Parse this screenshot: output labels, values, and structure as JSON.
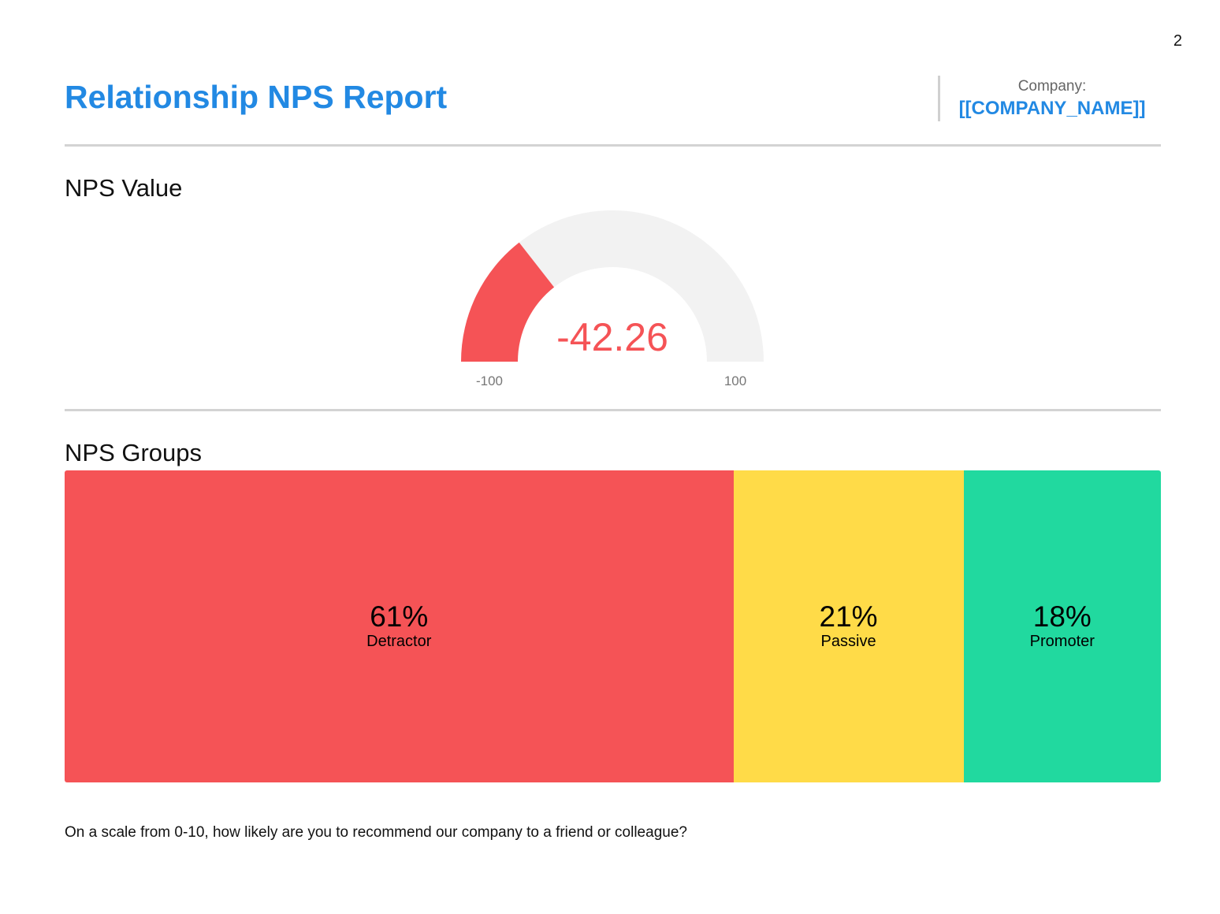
{
  "page": {
    "number": "2"
  },
  "header": {
    "title": "Relationship NPS Report",
    "company_label": "Company:",
    "company_name": "[[COMPANY_NAME]]"
  },
  "sections": {
    "nps_value_title": "NPS Value",
    "nps_groups_title": "NPS Groups"
  },
  "footer": {
    "question": "On a scale from 0-10, how likely are you to recommend our company to a friend or colleague?"
  },
  "colors": {
    "accent": "#2289e3",
    "detractor": "#f55356",
    "passive": "#ffdb48",
    "promoter": "#21d99f",
    "gauge_track": "#f2f2f2",
    "gauge_value": "#f55356",
    "axis_label": "#777777",
    "divider": "#d3d3d3"
  },
  "chart_data": [
    {
      "type": "gauge",
      "value": -42.26,
      "value_label": "-42.26",
      "min": -100,
      "max": 100,
      "min_label": "-100",
      "max_label": "100"
    },
    {
      "type": "bar",
      "stacked": true,
      "orientation": "horizontal",
      "categories": [
        "Detractor",
        "Passive",
        "Promoter"
      ],
      "values": [
        61,
        21,
        18
      ],
      "value_labels": [
        "61%",
        "21%",
        "18%"
      ],
      "unit": "%",
      "colors": [
        "#f55356",
        "#ffdb48",
        "#21d99f"
      ]
    }
  ]
}
